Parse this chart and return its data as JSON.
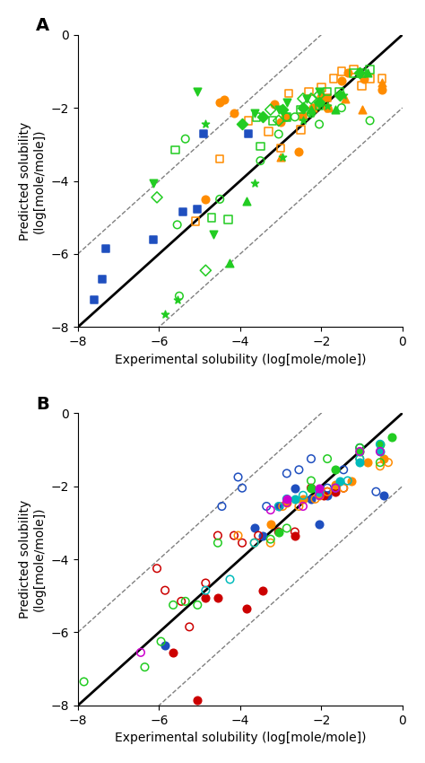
{
  "panel_A": {
    "title": "A",
    "xlabel": "Experimental solubility (log[mole/mole])",
    "ylabel": "Predicted solubility\n(log[mole/mole])",
    "xlim": [
      -8,
      0
    ],
    "ylim": [
      -8,
      0
    ],
    "xticks": [
      -8,
      -6,
      -4,
      -2,
      0
    ],
    "yticks": [
      -8,
      -6,
      -4,
      -2,
      0
    ],
    "series": [
      {
        "color": "#1F4FBF",
        "marker": "s",
        "filled": true,
        "x": [
          -7.6,
          -7.4,
          -7.3,
          -6.15,
          -5.4,
          -5.05,
          -4.9,
          -3.8
        ],
        "y": [
          -7.25,
          -6.7,
          -5.85,
          -5.6,
          -4.85,
          -4.78,
          -2.7,
          -2.72
        ]
      },
      {
        "color": "#FF8C00",
        "marker": "o",
        "filled": true,
        "x": [
          -4.85,
          -4.5,
          -4.4,
          -4.15,
          -3.15,
          -3.0,
          -2.9,
          -2.55,
          -2.2,
          -2.0,
          -1.85,
          -1.5,
          -1.35,
          -0.95,
          -0.5
        ],
        "y": [
          -4.5,
          -1.85,
          -1.78,
          -2.15,
          -1.9,
          -2.4,
          -2.25,
          -3.2,
          -2.0,
          -1.7,
          -2.0,
          -1.25,
          -1.05,
          -1.2,
          -1.5
        ]
      },
      {
        "color": "#FF8C00",
        "marker": "s",
        "filled": false,
        "x": [
          -5.1,
          -4.5,
          -3.8,
          -3.3,
          -3.0,
          -2.8,
          -2.5,
          -2.3,
          -2.0,
          -1.7,
          -1.5,
          -1.2,
          -1.0,
          -0.8,
          -0.5
        ],
        "y": [
          -5.1,
          -3.4,
          -2.35,
          -2.65,
          -3.1,
          -1.6,
          -2.6,
          -1.55,
          -1.45,
          -1.2,
          -1.0,
          -0.95,
          -1.4,
          -1.2,
          -1.2
        ]
      },
      {
        "color": "#FF8C00",
        "marker": "^",
        "filled": true,
        "x": [
          -3.0,
          -2.2,
          -1.8,
          -1.4,
          -1.0,
          -0.5
        ],
        "y": [
          -3.35,
          -2.0,
          -2.0,
          -1.75,
          -2.05,
          -1.3
        ]
      },
      {
        "color": "#FF8C00",
        "marker": "s",
        "filled": true,
        "x": [
          -2.45,
          -1.85
        ],
        "y": [
          -2.25,
          -1.72
        ]
      },
      {
        "color": "#22CC22",
        "marker": "o",
        "filled": false,
        "x": [
          -5.35,
          -5.5,
          -5.55,
          -4.5,
          -3.5,
          -3.05,
          -2.85,
          -2.65,
          -2.25,
          -2.05,
          -1.5,
          -0.8
        ],
        "y": [
          -2.85,
          -7.15,
          -5.2,
          -4.5,
          -3.45,
          -2.72,
          -2.25,
          -2.25,
          -2.15,
          -2.45,
          -2.0,
          -2.35
        ]
      },
      {
        "color": "#22CC22",
        "marker": "s",
        "filled": false,
        "x": [
          -5.6,
          -4.7,
          -4.3,
          -3.6,
          -3.5,
          -3.2,
          -2.85,
          -2.5,
          -2.05,
          -1.85,
          -1.55,
          -1.2,
          -1.0,
          -0.8
        ],
        "y": [
          -3.15,
          -5.0,
          -5.05,
          -2.25,
          -3.05,
          -2.35,
          -2.25,
          -2.05,
          -1.95,
          -1.55,
          -1.55,
          -1.05,
          -1.05,
          -0.95
        ]
      },
      {
        "color": "#22CC22",
        "marker": "D",
        "filled": false,
        "x": [
          -6.05,
          -4.85,
          -3.25,
          -3.05,
          -2.45,
          -2.25,
          -2.05
        ],
        "y": [
          -4.45,
          -6.45,
          -2.05,
          -2.35,
          -1.75,
          -1.75,
          -1.65
        ]
      },
      {
        "color": "#22CC22",
        "marker": "v",
        "filled": true,
        "x": [
          -6.15,
          -4.65,
          -5.05,
          -3.65,
          -3.05,
          -2.85,
          -2.35,
          -2.05
        ],
        "y": [
          -4.05,
          -5.45,
          -1.55,
          -2.15,
          -2.05,
          -1.85,
          -1.75,
          -1.55
        ]
      },
      {
        "color": "#22CC22",
        "marker": "^",
        "filled": true,
        "x": [
          -4.25,
          -3.85,
          -2.25,
          -1.65,
          -0.85
        ],
        "y": [
          -6.25,
          -4.55,
          -2.05,
          -2.05,
          -1.05
        ]
      },
      {
        "color": "#22CC22",
        "marker": "*",
        "filled": true,
        "x": [
          -5.85,
          -5.55,
          -4.85,
          -3.65,
          -2.95,
          -2.45,
          -2.25,
          -1.85,
          -1.45
        ],
        "y": [
          -7.65,
          -7.25,
          -2.45,
          -4.05,
          -3.35,
          -2.35,
          -2.15,
          -1.95,
          -1.65
        ]
      },
      {
        "color": "#22CC22",
        "marker": "D",
        "filled": true,
        "x": [
          -3.95,
          -3.45,
          -2.95,
          -2.45,
          -2.05,
          -1.55,
          -1.05
        ],
        "y": [
          -2.45,
          -2.25,
          -2.05,
          -2.0,
          -1.85,
          -1.65,
          -1.05
        ]
      }
    ]
  },
  "panel_B": {
    "title": "B",
    "xlabel": "Experimental solubility (log[mole/mole])",
    "ylabel": "Predicted solubility\n(log[mole/mole])",
    "xlim": [
      -8,
      0
    ],
    "ylim": [
      -8,
      0
    ],
    "xticks": [
      -8,
      -6,
      -4,
      -2,
      0
    ],
    "yticks": [
      -8,
      -6,
      -4,
      -2,
      0
    ],
    "series": [
      {
        "color": "#1F4FBF",
        "marker": "o",
        "filled": false,
        "x": [
          -4.45,
          -4.05,
          -3.95,
          -3.35,
          -2.85,
          -2.55,
          -2.25,
          -1.85,
          -1.45,
          -1.05,
          -0.65
        ],
        "y": [
          -2.55,
          -1.75,
          -2.05,
          -2.55,
          -1.65,
          -1.55,
          -1.25,
          -2.05,
          -1.55,
          -0.95,
          -2.15
        ]
      },
      {
        "color": "#1F4FBF",
        "marker": "o",
        "filled": true,
        "x": [
          -5.85,
          -3.65,
          -3.45,
          -3.05,
          -2.65,
          -2.25,
          -2.05,
          -1.85,
          -0.45
        ],
        "y": [
          -6.35,
          -3.15,
          -3.35,
          -2.55,
          -2.05,
          -2.35,
          -3.05,
          -2.25,
          -2.25
        ]
      },
      {
        "color": "#CC0000",
        "marker": "o",
        "filled": false,
        "x": [
          -6.05,
          -5.85,
          -5.45,
          -5.25,
          -4.85,
          -4.55,
          -4.15,
          -3.95,
          -3.55,
          -3.05,
          -2.65,
          -2.25,
          -1.85,
          -1.45
        ],
        "y": [
          -4.25,
          -4.85,
          -5.15,
          -5.85,
          -4.65,
          -3.35,
          -3.35,
          -3.55,
          -3.35,
          -3.25,
          -3.25,
          -2.05,
          -2.15,
          -2.05
        ]
      },
      {
        "color": "#CC0000",
        "marker": "o",
        "filled": true,
        "x": [
          -5.65,
          -5.05,
          -4.85,
          -4.55,
          -3.85,
          -3.45,
          -2.65,
          -1.95,
          -1.65
        ],
        "y": [
          -6.55,
          -7.85,
          -5.05,
          -5.05,
          -5.35,
          -4.85,
          -3.35,
          -2.25,
          -2.15
        ]
      },
      {
        "color": "#FF8C00",
        "marker": "o",
        "filled": false,
        "x": [
          -4.05,
          -3.65,
          -3.25,
          -2.95,
          -2.55,
          -2.15,
          -1.85,
          -1.45,
          -1.05,
          -0.55,
          -0.35
        ],
        "y": [
          -3.35,
          -3.55,
          -3.55,
          -2.55,
          -2.55,
          -2.35,
          -2.15,
          -2.05,
          -1.25,
          -1.45,
          -1.35
        ]
      },
      {
        "color": "#FF8C00",
        "marker": "o",
        "filled": true,
        "x": [
          -3.25,
          -2.85,
          -2.45,
          -2.05,
          -1.65,
          -1.25,
          -0.85,
          -0.45
        ],
        "y": [
          -3.05,
          -2.45,
          -2.35,
          -2.25,
          -1.95,
          -1.85,
          -1.35,
          -1.25
        ]
      },
      {
        "color": "#22CC22",
        "marker": "o",
        "filled": false,
        "x": [
          -7.85,
          -6.35,
          -5.95,
          -5.65,
          -5.35,
          -5.05,
          -4.55,
          -3.25,
          -2.85,
          -2.25,
          -1.85,
          -1.05,
          -0.55
        ],
        "y": [
          -7.35,
          -6.95,
          -6.25,
          -5.25,
          -5.15,
          -5.25,
          -3.55,
          -3.45,
          -3.15,
          -1.85,
          -1.25,
          -0.95,
          -1.35
        ]
      },
      {
        "color": "#22CC22",
        "marker": "o",
        "filled": true,
        "x": [
          -3.05,
          -2.25,
          -1.65,
          -1.05,
          -0.55,
          -0.25
        ],
        "y": [
          -3.25,
          -2.05,
          -1.55,
          -1.05,
          -0.85,
          -0.65
        ]
      },
      {
        "color": "#00BBBB",
        "marker": "o",
        "filled": false,
        "x": [
          -4.85,
          -4.25,
          -3.65,
          -3.05,
          -2.85,
          -2.45,
          -2.05,
          -1.65,
          -1.35,
          -1.05,
          -0.55
        ],
        "y": [
          -4.85,
          -4.55,
          -3.55,
          -2.55,
          -2.35,
          -2.25,
          -2.15,
          -2.05,
          -1.85,
          -1.25,
          -0.85
        ]
      },
      {
        "color": "#00BBBB",
        "marker": "o",
        "filled": true,
        "x": [
          -2.65,
          -2.05,
          -1.55,
          -1.05,
          -0.55
        ],
        "y": [
          -2.35,
          -2.15,
          -1.85,
          -1.35,
          -1.05
        ]
      },
      {
        "color": "#CC00CC",
        "marker": "o",
        "filled": false,
        "x": [
          -6.45,
          -3.25,
          -2.85,
          -2.45,
          -2.05,
          -1.65,
          -1.05,
          -0.55
        ],
        "y": [
          -6.55,
          -2.65,
          -2.45,
          -2.55,
          -2.25,
          -2.05,
          -1.05,
          -1.05
        ]
      },
      {
        "color": "#CC00CC",
        "marker": "o",
        "filled": true,
        "x": [
          -2.85,
          -2.05
        ],
        "y": [
          -2.35,
          -2.05
        ]
      }
    ]
  }
}
